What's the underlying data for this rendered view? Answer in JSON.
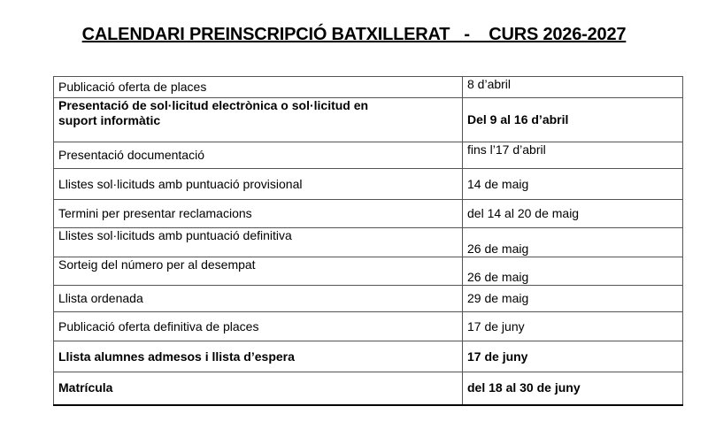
{
  "title": "CALENDARI PREINSCRIPCIÓ BATXILLERAT   -    CURS 2026-2027",
  "rows": [
    {
      "event": "Publicació oferta de places",
      "date": "8 d’abril",
      "bold": false
    },
    {
      "event": "Presentació de sol·licitud electrònica o sol·licitud en suport informàtic",
      "date": "Del 9 al 16 d’abril",
      "bold": true
    },
    {
      "event": "Presentació documentació",
      "date": "fins l’17 d’abril",
      "bold": false
    },
    {
      "event": "Llistes sol·licituds amb puntuació provisional",
      "date": "14 de maig",
      "bold": false
    },
    {
      "event": "Termini per presentar reclamacions",
      "date": "del 14 al 20 de maig",
      "bold": false
    },
    {
      "event": "Llistes sol·licituds amb puntuació definitiva",
      "date": "26 de maig",
      "bold": false
    },
    {
      "event": "Sorteig del número per al desempat",
      "date": "26 de maig",
      "bold": false
    },
    {
      "event": "Llista ordenada",
      "date": "29 de maig",
      "bold": false
    },
    {
      "event": "Publicació oferta definitiva de places",
      "date": "17 de juny",
      "bold": false
    },
    {
      "event": "Llista alumnes admesos i llista d’espera",
      "date": "17 de juny",
      "bold": true
    },
    {
      "event": " Matrícula",
      "date": "del 18 al 30 de juny",
      "bold": true
    }
  ]
}
